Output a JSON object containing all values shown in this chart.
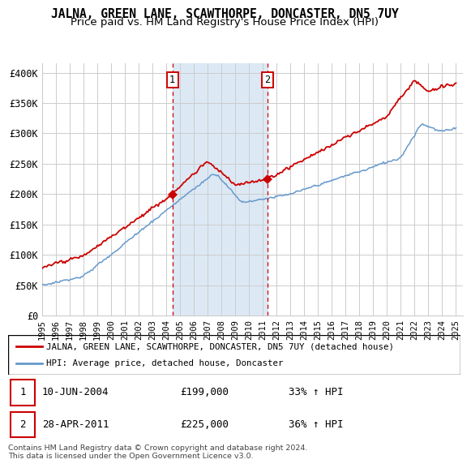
{
  "title": "JALNA, GREEN LANE, SCAWTHORPE, DONCASTER, DN5 7UY",
  "subtitle": "Price paid vs. HM Land Registry's House Price Index (HPI)",
  "title_fontsize": 10.5,
  "subtitle_fontsize": 9.5,
  "background_color": "#ffffff",
  "plot_bg_color": "#ffffff",
  "grid_color": "#cccccc",
  "ylabel_ticks": [
    "£0",
    "£50K",
    "£100K",
    "£150K",
    "£200K",
    "£250K",
    "£300K",
    "£350K",
    "£400K"
  ],
  "ylabel_values": [
    0,
    50000,
    100000,
    150000,
    200000,
    250000,
    300000,
    350000,
    400000
  ],
  "ylim": [
    0,
    415000
  ],
  "xlim_start": 1995.0,
  "xlim_end": 2025.5,
  "x_ticks": [
    1995,
    1996,
    1997,
    1998,
    1999,
    2000,
    2001,
    2002,
    2003,
    2004,
    2005,
    2006,
    2007,
    2008,
    2009,
    2010,
    2011,
    2012,
    2013,
    2014,
    2015,
    2016,
    2017,
    2018,
    2019,
    2020,
    2021,
    2022,
    2023,
    2024,
    2025
  ],
  "sale1_x": 2004.44,
  "sale1_y": 199000,
  "sale1_label": "1",
  "sale2_x": 2011.32,
  "sale2_y": 225000,
  "sale2_label": "2",
  "shade_color": "#dce9f5",
  "red_line_color": "#cc0000",
  "blue_line_color": "#6699cc",
  "legend_label1": "JALNA, GREEN LANE, SCAWTHORPE, DONCASTER, DN5 7UY (detached house)",
  "legend_label2": "HPI: Average price, detached house, Doncaster",
  "annotation1_date": "10-JUN-2004",
  "annotation1_price": "£199,000",
  "annotation1_hpi": "33% ↑ HPI",
  "annotation2_date": "28-APR-2011",
  "annotation2_price": "£225,000",
  "annotation2_hpi": "36% ↑ HPI",
  "footer": "Contains HM Land Registry data © Crown copyright and database right 2024.\nThis data is licensed under the Open Government Licence v3.0."
}
